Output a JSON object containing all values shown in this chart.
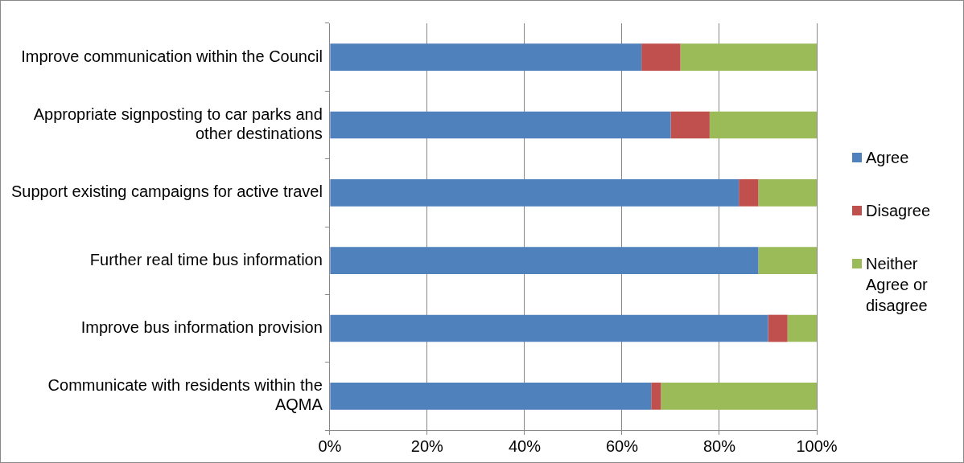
{
  "chart_data": {
    "type": "bar",
    "orientation": "horizontal",
    "stacked": true,
    "categories": [
      "Improve communication within the Council",
      "Appropriate signposting to car parks and other destinations",
      "Support existing campaigns for active travel",
      "Further real time bus information",
      "Improve bus information provision",
      "Communicate with residents within the AQMA"
    ],
    "series": [
      {
        "name": "Agree",
        "color": "#4f81bd",
        "values": [
          64,
          70,
          84,
          88,
          90,
          66
        ]
      },
      {
        "name": "Disagree",
        "color": "#c0504d",
        "values": [
          8,
          8,
          4,
          0,
          4,
          2
        ]
      },
      {
        "name": "Neither Agree or disagree",
        "color": "#9bbb59",
        "values": [
          28,
          22,
          12,
          12,
          6,
          32
        ]
      }
    ],
    "xlim": [
      0,
      100
    ],
    "xticks": [
      {
        "value": 0,
        "label": "0%"
      },
      {
        "value": 20,
        "label": "20%"
      },
      {
        "value": 40,
        "label": "40%"
      },
      {
        "value": 60,
        "label": "60%"
      },
      {
        "value": 80,
        "label": "80%"
      },
      {
        "value": 100,
        "label": "100%"
      }
    ],
    "grid": "x",
    "legend": "right"
  }
}
